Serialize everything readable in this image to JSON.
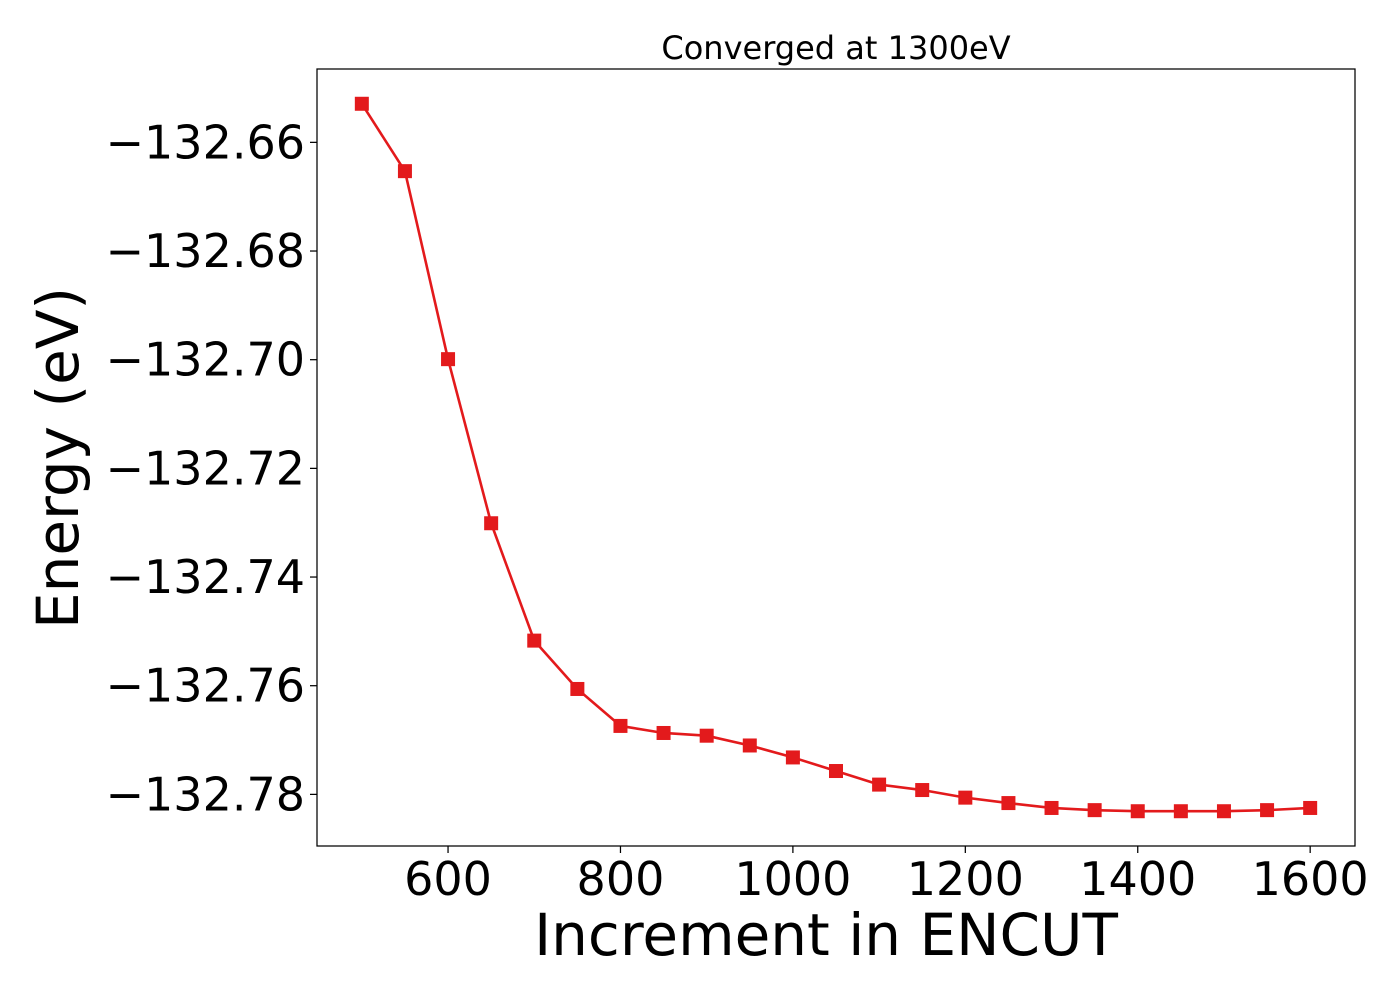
{
  "chart_data": {
    "type": "line",
    "title": "Converged at 1300eV",
    "xlabel": "Increment in ENCUT",
    "ylabel": "Energy (eV)",
    "xlim": [
      448,
      1652
    ],
    "ylim": [
      -132.7895,
      -132.6465
    ],
    "x_ticks": [
      600,
      800,
      1000,
      1200,
      1400,
      1600
    ],
    "x_tick_labels": [
      "600",
      "800",
      "1000",
      "1200",
      "1400",
      "1600"
    ],
    "y_ticks": [
      -132.66,
      -132.68,
      -132.7,
      -132.72,
      -132.74,
      -132.76,
      -132.78
    ],
    "y_tick_labels": [
      "−132.66",
      "−132.68",
      "−132.70",
      "−132.72",
      "−132.74",
      "−132.76",
      "−132.78"
    ],
    "grid": false,
    "series": [
      {
        "color": "#e31a1c",
        "marker": "square",
        "x": [
          500,
          550,
          600,
          650,
          700,
          750,
          800,
          850,
          900,
          950,
          1000,
          1050,
          1100,
          1150,
          1200,
          1250,
          1300,
          1350,
          1400,
          1450,
          1500,
          1550,
          1600
        ],
        "y": [
          -132.6529,
          -132.6653,
          -132.6999,
          -132.7301,
          -132.7517,
          -132.7606,
          -132.7674,
          -132.7687,
          -132.7692,
          -132.771,
          -132.7732,
          -132.7757,
          -132.7782,
          -132.7792,
          -132.7806,
          -132.7816,
          -132.7825,
          -132.7829,
          -132.7831,
          -132.7831,
          -132.7831,
          -132.7829,
          -132.7825
        ]
      }
    ]
  }
}
